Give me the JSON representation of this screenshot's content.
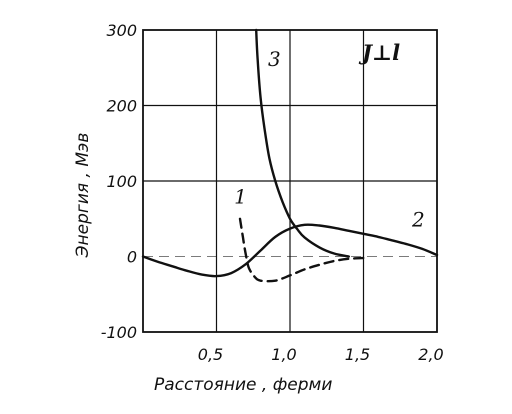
{
  "chart_data": {
    "type": "line",
    "xlabel": "Расстояние , ферми",
    "ylabel": "Энергия , Мэв",
    "xlim": [
      0,
      2.0
    ],
    "ylim": [
      -100,
      300
    ],
    "x_ticks": [
      "0,5",
      "1,0",
      "1,5",
      "2,0"
    ],
    "x_tick_values": [
      0.5,
      1.0,
      1.5,
      2.0
    ],
    "y_ticks": [
      "300",
      "200",
      "100",
      "0",
      "-100"
    ],
    "y_tick_values": [
      300,
      200,
      100,
      0,
      -100
    ],
    "annotation": "J⊥l",
    "grid": true,
    "series": [
      {
        "name": "1",
        "style": "dashed",
        "x": [
          0.66,
          0.68,
          0.7,
          0.72,
          0.76,
          0.8,
          0.9,
          1.0,
          1.1,
          1.2,
          1.3,
          1.4,
          1.5
        ],
        "y": [
          50,
          25,
          2,
          -15,
          -27,
          -32,
          -32,
          -25,
          -17,
          -11,
          -6,
          -3,
          -2
        ]
      },
      {
        "name": "2",
        "style": "solid",
        "x": [
          0,
          0.1,
          0.2,
          0.3,
          0.4,
          0.5,
          0.6,
          0.7,
          0.8,
          0.9,
          1.0,
          1.1,
          1.2,
          1.3,
          1.4,
          1.5,
          1.6,
          1.7,
          1.8,
          1.9,
          2.0
        ],
        "y": [
          0,
          -7,
          -13,
          -19,
          -24,
          -26,
          -22,
          -10,
          8,
          26,
          37,
          42,
          41,
          38,
          34,
          30,
          26,
          21,
          16,
          10,
          2
        ]
      },
      {
        "name": "3",
        "style": "solid",
        "x": [
          0.77,
          0.78,
          0.8,
          0.83,
          0.86,
          0.9,
          0.95,
          1.0,
          1.05,
          1.1,
          1.2,
          1.3,
          1.4
        ],
        "y": [
          300,
          260,
          210,
          165,
          130,
          100,
          72,
          50,
          36,
          25,
          12,
          4,
          0
        ]
      }
    ],
    "series_label_positions": [
      {
        "name": "1",
        "x": 0.62,
        "y": 70
      },
      {
        "name": "2",
        "x": 1.83,
        "y": 40
      },
      {
        "name": "3",
        "x": 0.85,
        "y": 252
      }
    ]
  }
}
